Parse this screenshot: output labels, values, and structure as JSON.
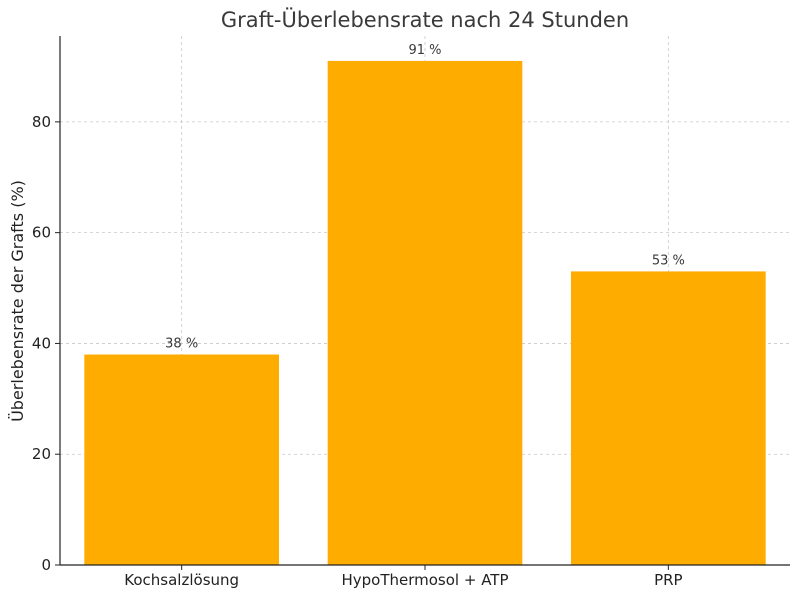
{
  "chart_data": {
    "type": "bar",
    "title": "Graft-Überlebensrate nach 24 Stunden",
    "xlabel": "",
    "ylabel": "Überlebensrate der Grafts (%)",
    "categories": [
      "Kochsalzlösung",
      "HypoThermosol + ATP",
      "PRP"
    ],
    "values": [
      38,
      91,
      53
    ],
    "data_labels": [
      "38 %",
      "91 %",
      "53 %"
    ],
    "ylim": [
      0,
      95.5
    ],
    "yticks": [
      0,
      20,
      40,
      60,
      80
    ],
    "ytick_labels": [
      "0",
      "20",
      "40",
      "60",
      "80"
    ],
    "bar_color": "#FFAC00",
    "grid": true,
    "legend": "none"
  }
}
